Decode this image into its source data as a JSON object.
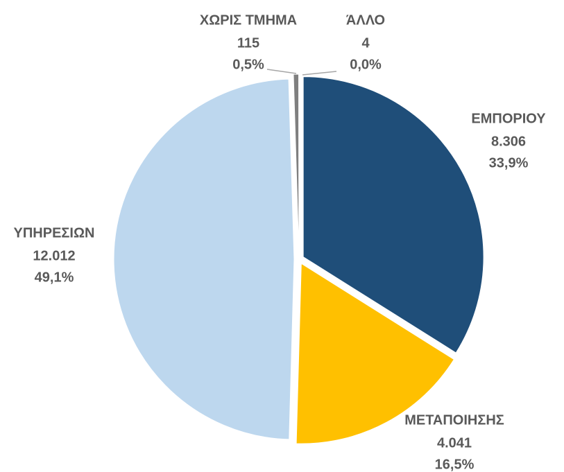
{
  "chart_data": {
    "type": "pie",
    "categories": [
      "ΕΜΠΟΡΙΟΥ",
      "ΜΕΤΑΠΟΙΗΣΗΣ",
      "ΥΠΗΡΕΣΙΩΝ",
      "ΧΩΡΙΣ ΤΜΗΜΑ",
      "ΆΛΛΟ"
    ],
    "values": [
      8306,
      4041,
      12012,
      115,
      4
    ],
    "value_labels": [
      "8.306",
      "4.041",
      "12.012",
      "115",
      "4"
    ],
    "percent_labels": [
      "33,9%",
      "16,5%",
      "49,1%",
      "0,5%",
      "0,0%"
    ],
    "colors": [
      "#1f4e79",
      "#ffc000",
      "#bdd7ee",
      "#7f7f7f",
      "#404040"
    ]
  }
}
